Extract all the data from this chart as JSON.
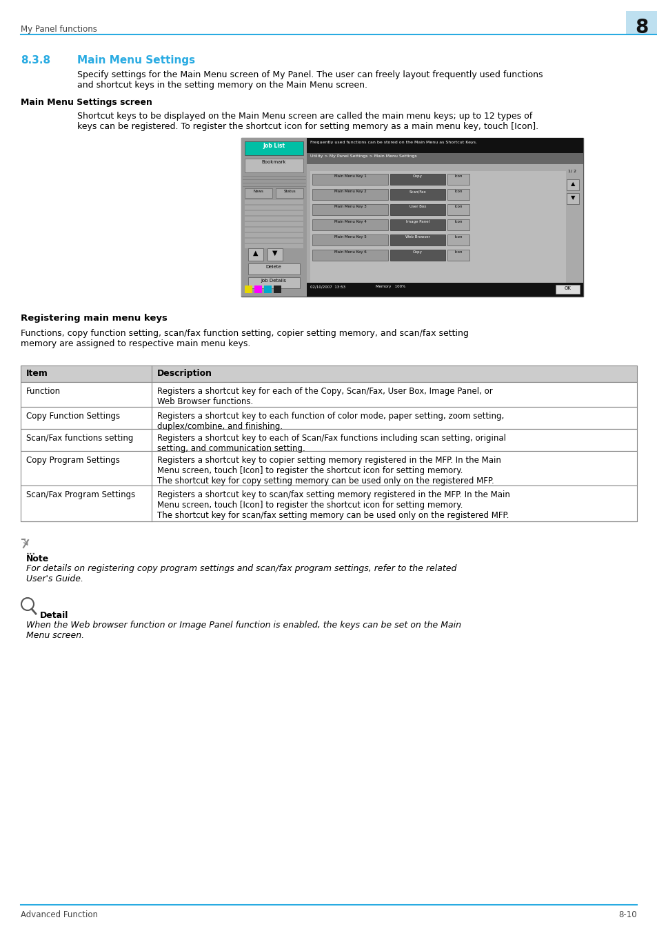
{
  "page_title": "My Panel functions",
  "page_number": "8",
  "section_number": "8.3.8",
  "section_title": "Main Menu Settings",
  "section_intro": "Specify settings for the Main Menu screen of My Panel. The user can freely layout frequently used functions\nand shortcut keys in the setting memory on the Main Menu screen.",
  "subsection1_title": "Main Menu Settings screen",
  "subsection1_text": "Shortcut keys to be displayed on the Main Menu screen are called the main menu keys; up to 12 types of\nkeys can be registered. To register the shortcut icon for setting memory as a main menu key, touch [Icon].",
  "subsection2_title": "Registering main menu keys",
  "subsection2_text": "Functions, copy function setting, scan/fax function setting, copier setting memory, and scan/fax setting\nmemory are assigned to respective main menu keys.",
  "table_headers": [
    "Item",
    "Description"
  ],
  "table_rows": [
    [
      "Function",
      "Registers a shortcut key for each of the Copy, Scan/Fax, User Box, Image Panel, or\nWeb Browser functions."
    ],
    [
      "Copy Function Settings",
      "Registers a shortcut key to each function of color mode, paper setting, zoom setting,\nduplex/combine, and finishing."
    ],
    [
      "Scan/Fax functions setting",
      "Registers a shortcut key to each of Scan/Fax functions including scan setting, original\nsetting, and communication setting."
    ],
    [
      "Copy Program Settings",
      "Registers a shortcut key to copier setting memory registered in the MFP. In the Main\nMenu screen, touch [Icon] to register the shortcut icon for setting memory.\nThe shortcut key for copy setting memory can be used only on the registered MFP."
    ],
    [
      "Scan/Fax Program Settings",
      "Registers a shortcut key to scan/fax setting memory registered in the MFP. In the Main\nMenu screen, touch [Icon] to register the shortcut icon for setting memory.\nThe shortcut key for scan/fax setting memory can be used only on the registered MFP."
    ]
  ],
  "note_title": "Note",
  "note_text": "For details on registering copy program settings and scan/fax program settings, refer to the related\nUser's Guide.",
  "detail_title": "Detail",
  "detail_text": "When the Web browser function or Image Panel function is enabled, the keys can be set on the Main\nMenu screen.",
  "footer_left": "Advanced Function",
  "footer_right": "8-10",
  "header_line_color": "#29ABE2",
  "section_title_color": "#29ABE2",
  "table_header_bg": "#CCCCCC",
  "table_border_color": "#888888",
  "page_bg": "#FFFFFF",
  "body_text_color": "#000000",
  "header_text_color": "#555555",
  "screen_top_bar_color": "#000000",
  "screen_breadcrumb_color": "#555555",
  "screen_bg_color": "#BBBBBB",
  "screen_content_bg": "#AAAAAA",
  "screen_key_btn_color": "#888888",
  "screen_val_btn_color": "#555555",
  "screen_joblist_color": "#00BFA5",
  "left_panel_bg": "#999999",
  "menu_keys": [
    [
      "Main Menu Key 1",
      "Copy"
    ],
    [
      "Main Menu Key 2",
      "Scan/Fax"
    ],
    [
      "Main Menu Key 3",
      "User Box"
    ],
    [
      "Main Menu Key 4",
      "Image Panel"
    ],
    [
      "Main Menu Key 5",
      "Web Browser"
    ],
    [
      "Main Menu Key 6",
      "Copy"
    ]
  ]
}
